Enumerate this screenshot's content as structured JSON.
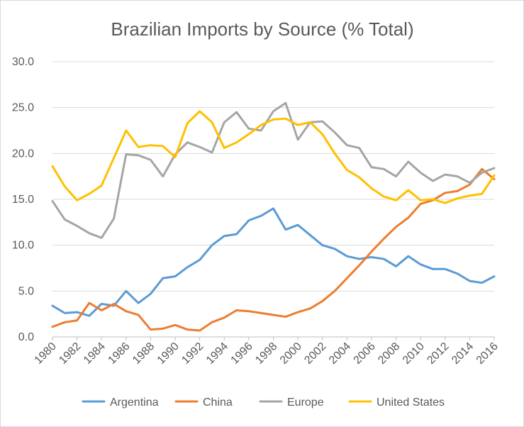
{
  "chart_data": {
    "type": "line",
    "title": "Brazilian Imports by Source (% Total)",
    "xlabel": "",
    "ylabel": "",
    "x": [
      1980,
      1981,
      1982,
      1983,
      1984,
      1985,
      1986,
      1987,
      1988,
      1989,
      1990,
      1991,
      1992,
      1993,
      1994,
      1995,
      1996,
      1997,
      1998,
      1999,
      2000,
      2001,
      2002,
      2003,
      2004,
      2005,
      2006,
      2007,
      2008,
      2009,
      2010,
      2011,
      2012,
      2013,
      2014,
      2015,
      2016
    ],
    "x_tick_labels": [
      "1980",
      "1982",
      "1984",
      "1986",
      "1988",
      "1990",
      "1992",
      "1994",
      "1996",
      "1998",
      "2000",
      "2002",
      "2004",
      "2006",
      "2008",
      "2010",
      "2012",
      "2014",
      "2016"
    ],
    "y_tick_labels": [
      "0.0",
      "5.0",
      "10.0",
      "15.0",
      "20.0",
      "25.0",
      "30.0"
    ],
    "ylim": [
      0,
      30
    ],
    "grid": true,
    "legend_position": "bottom",
    "series": [
      {
        "name": "Argentina",
        "color": "#5b9bd5",
        "values": [
          3.4,
          2.6,
          2.7,
          2.3,
          3.6,
          3.4,
          5.0,
          3.7,
          4.7,
          6.4,
          6.6,
          7.6,
          8.4,
          10.0,
          11.0,
          11.2,
          12.7,
          13.2,
          14.0,
          11.7,
          12.2,
          11.1,
          10.0,
          9.6,
          8.8,
          8.5,
          8.7,
          8.5,
          7.7,
          8.8,
          7.9,
          7.4,
          7.4,
          6.9,
          6.1,
          5.9,
          6.6
        ]
      },
      {
        "name": "China",
        "color": "#ed7d31",
        "values": [
          1.1,
          1.6,
          1.8,
          3.7,
          2.9,
          3.6,
          2.8,
          2.4,
          0.8,
          0.9,
          1.3,
          0.8,
          0.7,
          1.6,
          2.1,
          2.9,
          2.8,
          2.6,
          2.4,
          2.2,
          2.7,
          3.1,
          3.9,
          5.0,
          6.4,
          7.8,
          9.3,
          10.7,
          12.0,
          13.0,
          14.5,
          14.9,
          15.7,
          15.9,
          16.6,
          18.3,
          17.2
        ]
      },
      {
        "name": "Europe",
        "color": "#a5a5a5",
        "values": [
          14.8,
          12.8,
          12.1,
          11.3,
          10.8,
          12.9,
          19.9,
          19.8,
          19.3,
          17.5,
          19.9,
          21.2,
          20.7,
          20.1,
          23.4,
          24.5,
          22.7,
          22.5,
          24.6,
          25.5,
          21.5,
          23.4,
          23.5,
          22.3,
          20.9,
          20.6,
          18.5,
          18.3,
          17.5,
          19.1,
          17.9,
          17.0,
          17.7,
          17.5,
          16.8,
          17.9,
          18.4
        ]
      },
      {
        "name": "United States",
        "color": "#ffc000",
        "values": [
          18.6,
          16.4,
          14.9,
          15.6,
          16.5,
          19.5,
          22.5,
          20.7,
          20.9,
          20.8,
          19.6,
          23.3,
          24.6,
          23.4,
          20.6,
          21.2,
          22.1,
          23.1,
          23.7,
          23.8,
          23.1,
          23.4,
          22.1,
          20.0,
          18.2,
          17.4,
          16.2,
          15.3,
          14.9,
          16.0,
          14.9,
          15.0,
          14.6,
          15.1,
          15.4,
          15.6,
          17.6
        ]
      }
    ]
  }
}
